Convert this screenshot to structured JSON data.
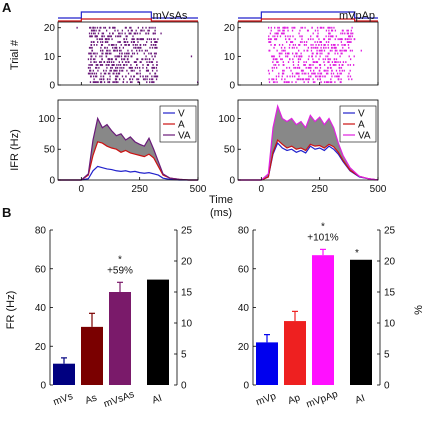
{
  "figure": {
    "panel_a": "A",
    "panel_b": "B",
    "a_ylabel_top": "Trial #",
    "a_ylabel_bottom": "IFR (Hz)",
    "a_xlabel": "Time",
    "a_xlabel_unit": "(ms)",
    "b_ylabel_left": "FR (Hz)",
    "b_ylabel_right": "%"
  },
  "colors": {
    "V": "#2222cc",
    "A": "#cc1111",
    "VA_left": "#6a1a7a",
    "VA_right": "#e020e0",
    "shade": "#888888",
    "bar_mVs": "#000080",
    "bar_As": "#7a0000",
    "bar_mVsAs": "#7a1a6a",
    "bar_mVp": "#0000ee",
    "bar_Ap": "#ee2020",
    "bar_mVpAp": "#ff10ff",
    "bar_AI": "#000000"
  },
  "chart_data": [
    {
      "id": "A-left-raster",
      "type": "scatter",
      "title": "mVsAs",
      "xlim": [
        -100,
        500
      ],
      "ylim": [
        0,
        22
      ],
      "xticks": [
        "0",
        "250",
        "500"
      ],
      "yticks": [
        "0",
        "10",
        "20"
      ],
      "stim_V_on_ms": [
        0,
        300
      ],
      "stim_A_on_ms": [
        0,
        300
      ],
      "response_window_ms": [
        30,
        330
      ]
    },
    {
      "id": "A-right-raster",
      "type": "scatter",
      "title": "mVpAp",
      "xlim": [
        -100,
        500
      ],
      "ylim": [
        0,
        22
      ],
      "xticks": [
        "0",
        "250",
        "500"
      ],
      "yticks": [
        "0",
        "10",
        "20"
      ],
      "stim_V_on_ms": [
        0,
        400
      ],
      "stim_A_on_ms": [
        0,
        400
      ],
      "response_window_ms": [
        30,
        400
      ]
    },
    {
      "id": "A-left-ifr",
      "type": "line",
      "xlim": [
        -100,
        500
      ],
      "ylim": [
        0,
        130
      ],
      "xticks": [
        "0",
        "250",
        "500"
      ],
      "yticks": [
        "0",
        "50",
        "100"
      ],
      "legend": [
        "V",
        "A",
        "VA"
      ],
      "legend_position": "top-right",
      "x": [
        -100,
        0,
        30,
        50,
        70,
        90,
        110,
        130,
        150,
        170,
        190,
        210,
        230,
        250,
        270,
        290,
        310,
        330,
        350,
        380,
        420,
        460,
        500
      ],
      "series": [
        {
          "name": "V",
          "values": [
            0,
            0,
            2,
            15,
            22,
            20,
            18,
            17,
            15,
            14,
            15,
            13,
            14,
            12,
            11,
            12,
            10,
            8,
            3,
            1,
            0,
            0,
            0
          ]
        },
        {
          "name": "A",
          "values": [
            0,
            0,
            8,
            40,
            62,
            60,
            55,
            52,
            50,
            45,
            48,
            44,
            42,
            40,
            38,
            42,
            36,
            22,
            8,
            3,
            1,
            0,
            0
          ]
        },
        {
          "name": "VA",
          "values": [
            0,
            0,
            10,
            65,
            100,
            85,
            90,
            80,
            72,
            75,
            65,
            70,
            62,
            58,
            55,
            68,
            50,
            30,
            10,
            3,
            1,
            0,
            0
          ]
        }
      ]
    },
    {
      "id": "A-right-ifr",
      "type": "line",
      "xlim": [
        -100,
        500
      ],
      "ylim": [
        0,
        130
      ],
      "xticks": [
        "0",
        "250",
        "500"
      ],
      "yticks": [
        "0",
        "50",
        "100"
      ],
      "legend": [
        "V",
        "A",
        "VA"
      ],
      "legend_position": "top-right",
      "x": [
        -100,
        0,
        30,
        50,
        70,
        90,
        110,
        130,
        150,
        170,
        190,
        210,
        230,
        250,
        270,
        290,
        310,
        330,
        350,
        380,
        420,
        460,
        500
      ],
      "series": [
        {
          "name": "V",
          "values": [
            0,
            0,
            5,
            42,
            60,
            52,
            48,
            50,
            45,
            48,
            44,
            55,
            50,
            52,
            48,
            55,
            50,
            42,
            30,
            15,
            5,
            2,
            0
          ]
        },
        {
          "name": "A",
          "values": [
            0,
            0,
            5,
            45,
            65,
            58,
            52,
            55,
            50,
            52,
            48,
            58,
            55,
            56,
            52,
            58,
            54,
            45,
            32,
            16,
            6,
            2,
            0
          ]
        },
        {
          "name": "VA",
          "values": [
            0,
            0,
            10,
            85,
            120,
            100,
            95,
            100,
            90,
            95,
            85,
            105,
            95,
            102,
            90,
            100,
            85,
            60,
            40,
            20,
            6,
            2,
            0
          ]
        }
      ]
    },
    {
      "id": "B-left",
      "type": "bar",
      "categories": [
        "mVs",
        "As",
        "mVsAs",
        "AI"
      ],
      "values": [
        11,
        30,
        48,
        17
      ],
      "errors": [
        3,
        7,
        5,
        0
      ],
      "value_axis": [
        "left",
        "left",
        "left",
        "right"
      ],
      "ylim": [
        0,
        80
      ],
      "yticks": [
        "0",
        "20",
        "40",
        "60",
        "80"
      ],
      "ylim_right": [
        0,
        25
      ],
      "yticks_right": [
        "0",
        "5",
        "10",
        "15",
        "20",
        "25"
      ],
      "annotations": [
        "*",
        "+59%"
      ]
    },
    {
      "id": "B-right",
      "type": "bar",
      "categories": [
        "mVp",
        "Ap",
        "mVpAp",
        "AI"
      ],
      "values": [
        22,
        33,
        67,
        20.2
      ],
      "errors": [
        4,
        5,
        3,
        0
      ],
      "value_axis": [
        "left",
        "left",
        "left",
        "right"
      ],
      "ylim": [
        0,
        80
      ],
      "yticks": [
        "0",
        "20",
        "40",
        "60",
        "80"
      ],
      "ylim_right": [
        0,
        25
      ],
      "yticks_right": [
        "0",
        "5",
        "10",
        "15",
        "20",
        "25"
      ],
      "annotations": [
        "*",
        "+101%",
        "*"
      ]
    }
  ]
}
